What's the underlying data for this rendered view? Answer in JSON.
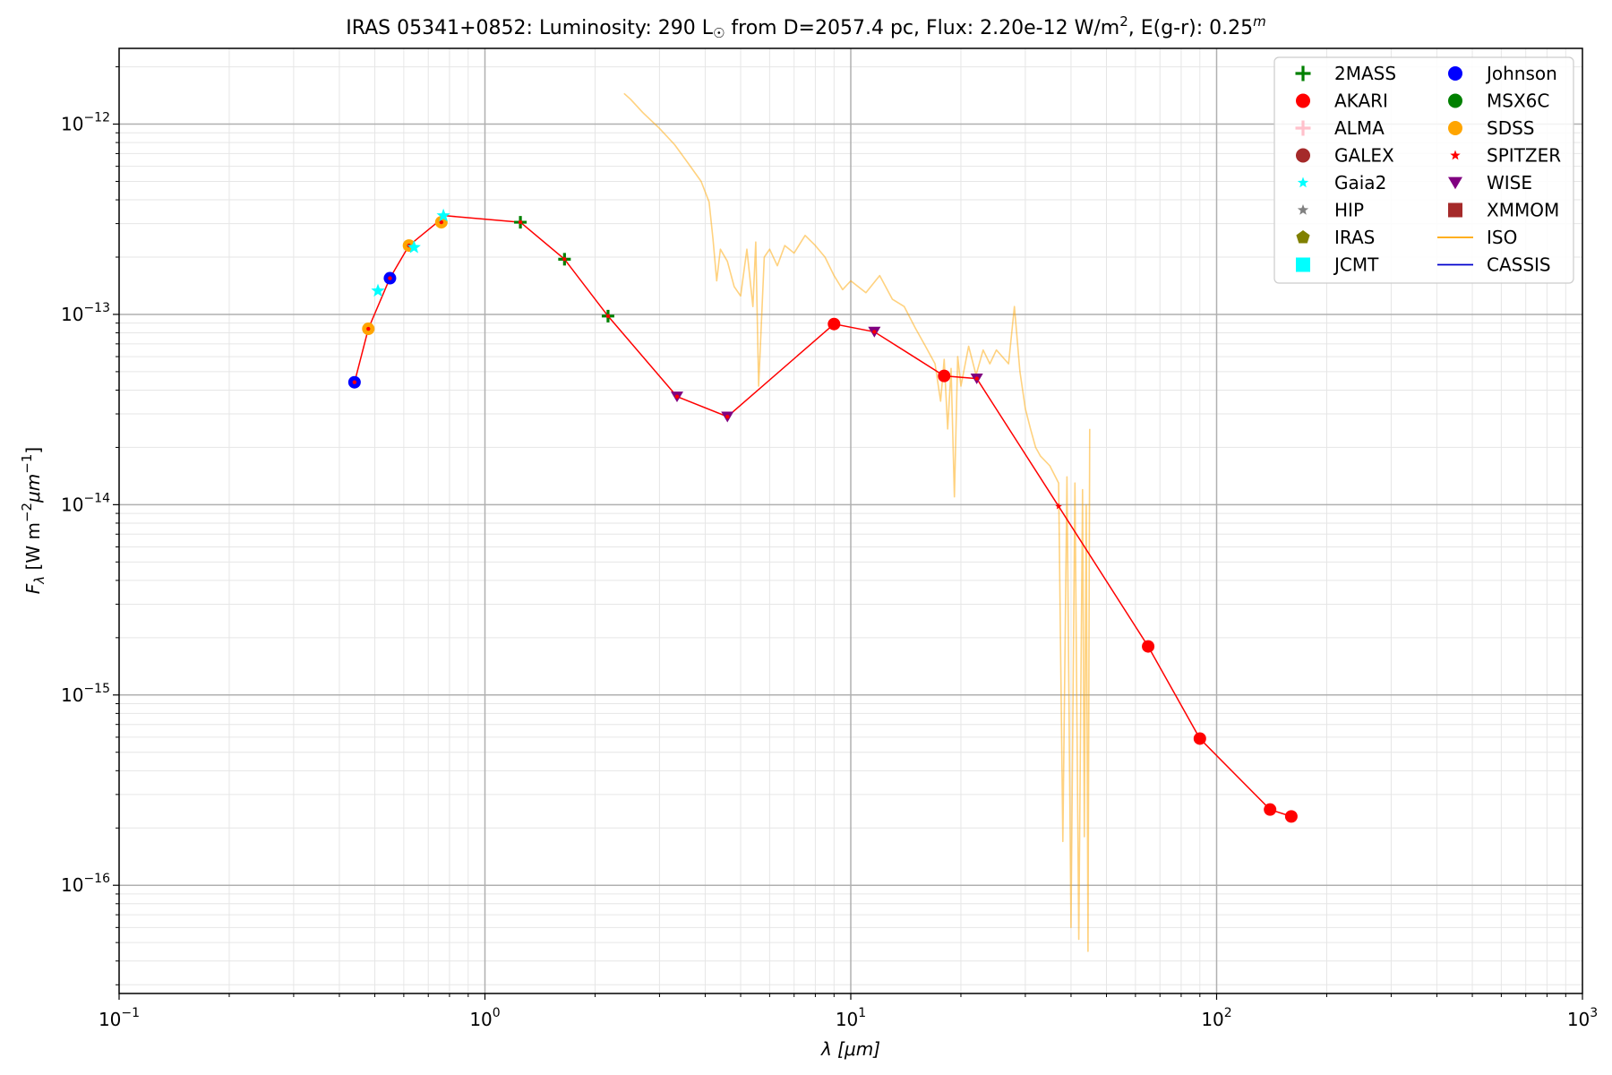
{
  "chart_data": {
    "type": "scatter",
    "title": {
      "pre": "IRAS 05341+0852:  Luminosity: 290 L",
      "sun": "☉",
      "mid": " from D=2057.4 pc, Flux: 2.20e-12 W/m",
      "sq": "2",
      "post": ", E(g-r): 0.25",
      "m": "m"
    },
    "xlabel": {
      "sym": "λ",
      "unit": " [μm]"
    },
    "ylabel": {
      "sym": "F",
      "sub": "λ",
      "unit": " [W m",
      "exp1": "−2",
      "um": "μm",
      "exp2": "−1",
      "close": "]"
    },
    "xscale": "log",
    "yscale": "log",
    "xlim": [
      0.1,
      1000
    ],
    "ylim": [
      2.7e-17,
      2.5e-12
    ],
    "grid": true,
    "legend_position": "top-right",
    "x_ticks": [
      {
        "value": 0.1,
        "base": "10",
        "exp": "−1"
      },
      {
        "value": 1,
        "base": "10",
        "exp": "0"
      },
      {
        "value": 10,
        "base": "10",
        "exp": "1"
      },
      {
        "value": 100,
        "base": "10",
        "exp": "2"
      },
      {
        "value": 1000,
        "base": "10",
        "exp": "3"
      }
    ],
    "y_ticks": [
      {
        "value": 1e-16,
        "base": "10",
        "exp": "−16"
      },
      {
        "value": 1e-15,
        "base": "10",
        "exp": "−15"
      },
      {
        "value": 1e-14,
        "base": "10",
        "exp": "−14"
      },
      {
        "value": 1e-13,
        "base": "10",
        "exp": "−13"
      },
      {
        "value": 1e-12,
        "base": "10",
        "exp": "−12"
      }
    ],
    "legend": [
      {
        "name": "2MASS",
        "marker": "plus",
        "color": "#008000"
      },
      {
        "name": "AKARI",
        "marker": "circle",
        "color": "#ff0000"
      },
      {
        "name": "ALMA",
        "marker": "plus",
        "color": "#ffc0cb"
      },
      {
        "name": "GALEX",
        "marker": "circle",
        "color": "#a52a2a"
      },
      {
        "name": "Gaia2",
        "marker": "star",
        "color": "#00ffff"
      },
      {
        "name": "HIP",
        "marker": "star",
        "color": "#808080"
      },
      {
        "name": "IRAS",
        "marker": "pentagon",
        "color": "#808000"
      },
      {
        "name": "JCMT",
        "marker": "square",
        "color": "#00ffff"
      },
      {
        "name": "Johnson",
        "marker": "circle",
        "color": "#0000ff"
      },
      {
        "name": "MSX6C",
        "marker": "circle",
        "color": "#008000"
      },
      {
        "name": "SDSS",
        "marker": "circle",
        "color": "#ffa500"
      },
      {
        "name": "SPITZER",
        "marker": "star",
        "color": "#ff0000"
      },
      {
        "name": "WISE",
        "marker": "triangle_down",
        "color": "#800080"
      },
      {
        "name": "XMMOM",
        "marker": "square",
        "color": "#a52a2a"
      },
      {
        "name": "ISO",
        "marker": "line",
        "color": "#ffa500"
      },
      {
        "name": "CASSIS",
        "marker": "line",
        "color": "#0000cd"
      }
    ],
    "model_line": {
      "color": "#ff0000",
      "points": [
        [
          0.44,
          4.4e-14
        ],
        [
          0.48,
          8.4e-14
        ],
        [
          0.55,
          1.55e-13
        ],
        [
          0.62,
          2.3e-13
        ],
        [
          0.78,
          3.3e-13
        ],
        [
          1.25,
          3.05e-13
        ],
        [
          1.65,
          1.95e-13
        ],
        [
          2.17,
          9.8e-14
        ],
        [
          3.35,
          3.7e-14
        ],
        [
          4.6,
          2.9e-14
        ],
        [
          9.0,
          8.9e-14
        ],
        [
          11.6,
          8.1e-14
        ],
        [
          18.0,
          4.75e-14
        ],
        [
          22.1,
          4.6e-14
        ],
        [
          37.0,
          9.8e-15
        ],
        [
          65.0,
          1.8e-15
        ],
        [
          90.0,
          5.9e-16
        ],
        [
          140.0,
          2.5e-16
        ],
        [
          160.0,
          2.3e-16
        ]
      ]
    },
    "series": [
      {
        "name": "Johnson",
        "marker": "circle",
        "color": "#0000ff",
        "points": [
          [
            0.44,
            4.4e-14
          ],
          [
            0.55,
            1.55e-13
          ]
        ]
      },
      {
        "name": "SDSS",
        "marker": "circle",
        "color": "#ffa500",
        "points": [
          [
            0.48,
            8.4e-14
          ],
          [
            0.62,
            2.3e-13
          ],
          [
            0.76,
            3.05e-13
          ]
        ]
      },
      {
        "name": "Gaia2",
        "marker": "star",
        "color": "#00ffff",
        "points": [
          [
            0.51,
            1.33e-13
          ],
          [
            0.64,
            2.25e-13
          ],
          [
            0.77,
            3.3e-13
          ]
        ]
      },
      {
        "name": "2MASS",
        "marker": "plus",
        "color": "#008000",
        "points": [
          [
            1.25,
            3.05e-13
          ],
          [
            1.65,
            1.95e-13
          ],
          [
            2.17,
            9.8e-14
          ]
        ]
      },
      {
        "name": "WISE",
        "marker": "triangle_down",
        "color": "#800080",
        "points": [
          [
            3.35,
            3.7e-14
          ],
          [
            4.6,
            2.9e-14
          ],
          [
            11.6,
            8.1e-14
          ],
          [
            22.1,
            4.6e-14
          ]
        ]
      },
      {
        "name": "AKARI",
        "marker": "circle",
        "color": "#ff0000",
        "points": [
          [
            9.0,
            8.9e-14
          ],
          [
            18.0,
            4.75e-14
          ],
          [
            65.0,
            1.8e-15
          ],
          [
            90.0,
            5.9e-16
          ],
          [
            140.0,
            2.5e-16
          ],
          [
            160.0,
            2.3e-16
          ]
        ]
      },
      {
        "name": "SPITZER",
        "marker": "star",
        "color": "#ff0000",
        "points": [
          [
            37.0,
            9.8e-15
          ]
        ]
      }
    ],
    "iso_spectrum": {
      "name": "ISO",
      "color": "#ffa500",
      "points": [
        [
          2.4,
          1.45e-12
        ],
        [
          2.5,
          1.35e-12
        ],
        [
          2.7,
          1.15e-12
        ],
        [
          3.0,
          9.5e-13
        ],
        [
          3.3,
          7.8e-13
        ],
        [
          3.6,
          6.2e-13
        ],
        [
          3.9,
          5e-13
        ],
        [
          4.1,
          3.9e-13
        ],
        [
          4.2,
          2.5e-13
        ],
        [
          4.3,
          1.5e-13
        ],
        [
          4.4,
          2.2e-13
        ],
        [
          4.6,
          1.9e-13
        ],
        [
          4.8,
          1.4e-13
        ],
        [
          5.0,
          1.25e-13
        ],
        [
          5.2,
          2.2e-13
        ],
        [
          5.4,
          1.1e-13
        ],
        [
          5.5,
          2.4e-13
        ],
        [
          5.6,
          4.2e-14
        ],
        [
          5.8,
          2e-13
        ],
        [
          6.0,
          2.2e-13
        ],
        [
          6.3,
          1.8e-13
        ],
        [
          6.6,
          2.3e-13
        ],
        [
          7.0,
          2.1e-13
        ],
        [
          7.5,
          2.6e-13
        ],
        [
          8.0,
          2.3e-13
        ],
        [
          8.5,
          2e-13
        ],
        [
          9.0,
          1.6e-13
        ],
        [
          9.5,
          1.35e-13
        ],
        [
          10.0,
          1.5e-13
        ],
        [
          11.0,
          1.3e-13
        ],
        [
          12.0,
          1.6e-13
        ],
        [
          13.0,
          1.2e-13
        ],
        [
          14.0,
          1.1e-13
        ],
        [
          15.0,
          8.5e-14
        ],
        [
          16.0,
          6.8e-14
        ],
        [
          17.0,
          5.5e-14
        ],
        [
          17.6,
          3.5e-14
        ],
        [
          18.0,
          5.8e-14
        ],
        [
          18.4,
          2.5e-14
        ],
        [
          18.8,
          5.2e-14
        ],
        [
          19.2,
          1.1e-14
        ],
        [
          19.6,
          6e-14
        ],
        [
          20.0,
          4.2e-14
        ],
        [
          21.0,
          6.8e-14
        ],
        [
          22.0,
          4.8e-14
        ],
        [
          23.0,
          6.5e-14
        ],
        [
          24.0,
          5.5e-14
        ],
        [
          25.0,
          6.5e-14
        ],
        [
          27.0,
          5.5e-14
        ],
        [
          28.0,
          1.1e-13
        ],
        [
          29.0,
          5e-14
        ],
        [
          30.0,
          3.2e-14
        ],
        [
          31.0,
          2.5e-14
        ],
        [
          32.0,
          2e-14
        ],
        [
          33.0,
          1.8e-14
        ],
        [
          35.0,
          1.6e-14
        ],
        [
          37.0,
          1.3e-14
        ],
        [
          38.0,
          1.7e-16
        ],
        [
          39.0,
          1.4e-14
        ],
        [
          40.0,
          6e-17
        ],
        [
          41.0,
          1.3e-14
        ],
        [
          42.0,
          5.2e-17
        ],
        [
          43.0,
          1.2e-14
        ],
        [
          43.5,
          1.8e-16
        ],
        [
          44.0,
          1e-14
        ],
        [
          44.5,
          4.5e-17
        ],
        [
          45.0,
          2.5e-14
        ]
      ]
    }
  }
}
